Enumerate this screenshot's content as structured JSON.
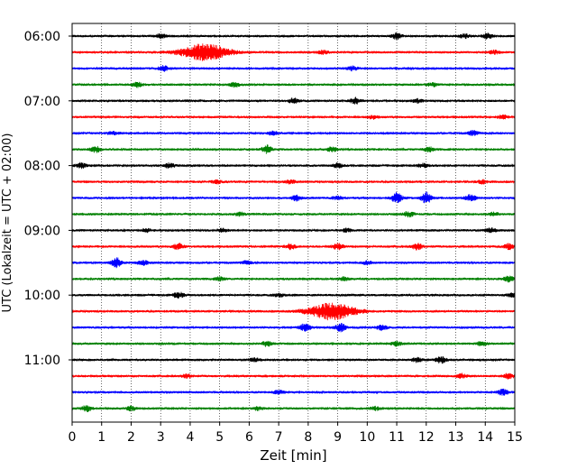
{
  "chart_data": {
    "type": "line",
    "title": "",
    "xlabel": "Zeit  [min]",
    "ylabel": "UTC (Lokalzeit = UTC + 02:00)",
    "xlim": [
      0,
      15
    ],
    "x_ticks": [
      "0",
      "1",
      "2",
      "3",
      "4",
      "5",
      "6",
      "7",
      "8",
      "9",
      "10",
      "11",
      "12",
      "13",
      "14",
      "15"
    ],
    "y_ticks": [
      "06:00",
      "07:00",
      "08:00",
      "09:00",
      "10:00",
      "11:00"
    ],
    "grid": "vertical-dotted",
    "trace_interval_min": 15,
    "trace_colors": [
      "#000000",
      "#ff0000",
      "#0000ff",
      "#008000"
    ],
    "series": [
      {
        "start": "06:00",
        "color": "#000000",
        "events": [
          [
            3.0,
            0.25
          ],
          [
            11.0,
            0.35
          ],
          [
            13.3,
            0.25
          ],
          [
            14.1,
            0.3
          ]
        ]
      },
      {
        "start": "06:15",
        "color": "#ff0000",
        "events": [
          [
            4.5,
            1.0
          ],
          [
            8.5,
            0.2
          ],
          [
            14.3,
            0.2
          ]
        ]
      },
      {
        "start": "06:30",
        "color": "#0000ff",
        "events": [
          [
            3.1,
            0.3
          ],
          [
            9.5,
            0.25
          ]
        ]
      },
      {
        "start": "06:45",
        "color": "#008000",
        "events": [
          [
            2.2,
            0.3
          ],
          [
            5.5,
            0.25
          ],
          [
            12.2,
            0.2
          ]
        ]
      },
      {
        "start": "07:00",
        "color": "#000000",
        "events": [
          [
            7.5,
            0.3
          ],
          [
            9.6,
            0.35
          ],
          [
            11.7,
            0.2
          ]
        ]
      },
      {
        "start": "07:15",
        "color": "#ff0000",
        "events": [
          [
            10.2,
            0.2
          ],
          [
            14.6,
            0.2
          ]
        ]
      },
      {
        "start": "07:30",
        "color": "#0000ff",
        "events": [
          [
            1.4,
            0.2
          ],
          [
            6.8,
            0.2
          ],
          [
            13.6,
            0.3
          ]
        ]
      },
      {
        "start": "07:45",
        "color": "#008000",
        "events": [
          [
            0.8,
            0.35
          ],
          [
            6.6,
            0.45
          ],
          [
            8.8,
            0.3
          ],
          [
            12.1,
            0.25
          ]
        ]
      },
      {
        "start": "08:00",
        "color": "#000000",
        "events": [
          [
            0.3,
            0.3
          ],
          [
            3.3,
            0.3
          ],
          [
            9.0,
            0.25
          ],
          [
            11.9,
            0.2
          ]
        ]
      },
      {
        "start": "08:15",
        "color": "#ff0000",
        "events": [
          [
            4.9,
            0.2
          ],
          [
            7.4,
            0.2
          ],
          [
            13.9,
            0.2
          ]
        ]
      },
      {
        "start": "08:30",
        "color": "#0000ff",
        "events": [
          [
            7.6,
            0.3
          ],
          [
            9.0,
            0.2
          ],
          [
            11.0,
            0.6
          ],
          [
            12.0,
            0.7
          ],
          [
            13.5,
            0.4
          ]
        ]
      },
      {
        "start": "08:45",
        "color": "#008000",
        "events": [
          [
            5.7,
            0.2
          ],
          [
            11.4,
            0.3
          ],
          [
            14.3,
            0.2
          ]
        ]
      },
      {
        "start": "09:00",
        "color": "#000000",
        "events": [
          [
            2.5,
            0.2
          ],
          [
            5.1,
            0.2
          ],
          [
            9.3,
            0.2
          ],
          [
            14.2,
            0.25
          ]
        ]
      },
      {
        "start": "09:15",
        "color": "#ff0000",
        "events": [
          [
            3.6,
            0.35
          ],
          [
            7.4,
            0.3
          ],
          [
            9.0,
            0.35
          ],
          [
            11.7,
            0.35
          ],
          [
            14.8,
            0.35
          ]
        ]
      },
      {
        "start": "09:30",
        "color": "#0000ff",
        "events": [
          [
            1.5,
            0.55
          ],
          [
            2.4,
            0.3
          ],
          [
            5.9,
            0.2
          ],
          [
            10.0,
            0.2
          ]
        ]
      },
      {
        "start": "09:45",
        "color": "#008000",
        "events": [
          [
            5.0,
            0.2
          ],
          [
            9.2,
            0.2
          ],
          [
            14.8,
            0.35
          ]
        ]
      },
      {
        "start": "10:00",
        "color": "#000000",
        "events": [
          [
            3.6,
            0.35
          ],
          [
            7.0,
            0.2
          ],
          [
            14.9,
            0.2
          ]
        ]
      },
      {
        "start": "10:15",
        "color": "#ff0000",
        "events": [
          [
            8.8,
            1.0
          ]
        ]
      },
      {
        "start": "10:30",
        "color": "#0000ff",
        "events": [
          [
            7.9,
            0.45
          ],
          [
            9.1,
            0.45
          ],
          [
            10.5,
            0.3
          ]
        ]
      },
      {
        "start": "10:45",
        "color": "#008000",
        "events": [
          [
            6.6,
            0.3
          ],
          [
            11.0,
            0.25
          ],
          [
            13.9,
            0.25
          ]
        ]
      },
      {
        "start": "11:00",
        "color": "#000000",
        "events": [
          [
            6.2,
            0.2
          ],
          [
            11.7,
            0.25
          ],
          [
            12.5,
            0.35
          ]
        ]
      },
      {
        "start": "11:15",
        "color": "#ff0000",
        "events": [
          [
            3.9,
            0.2
          ],
          [
            13.2,
            0.25
          ],
          [
            14.8,
            0.3
          ]
        ]
      },
      {
        "start": "11:30",
        "color": "#0000ff",
        "events": [
          [
            7.0,
            0.2
          ],
          [
            14.6,
            0.35
          ]
        ]
      },
      {
        "start": "11:45",
        "color": "#008000",
        "events": [
          [
            0.5,
            0.35
          ],
          [
            2.0,
            0.25
          ],
          [
            6.3,
            0.2
          ],
          [
            10.3,
            0.2
          ]
        ]
      }
    ]
  }
}
